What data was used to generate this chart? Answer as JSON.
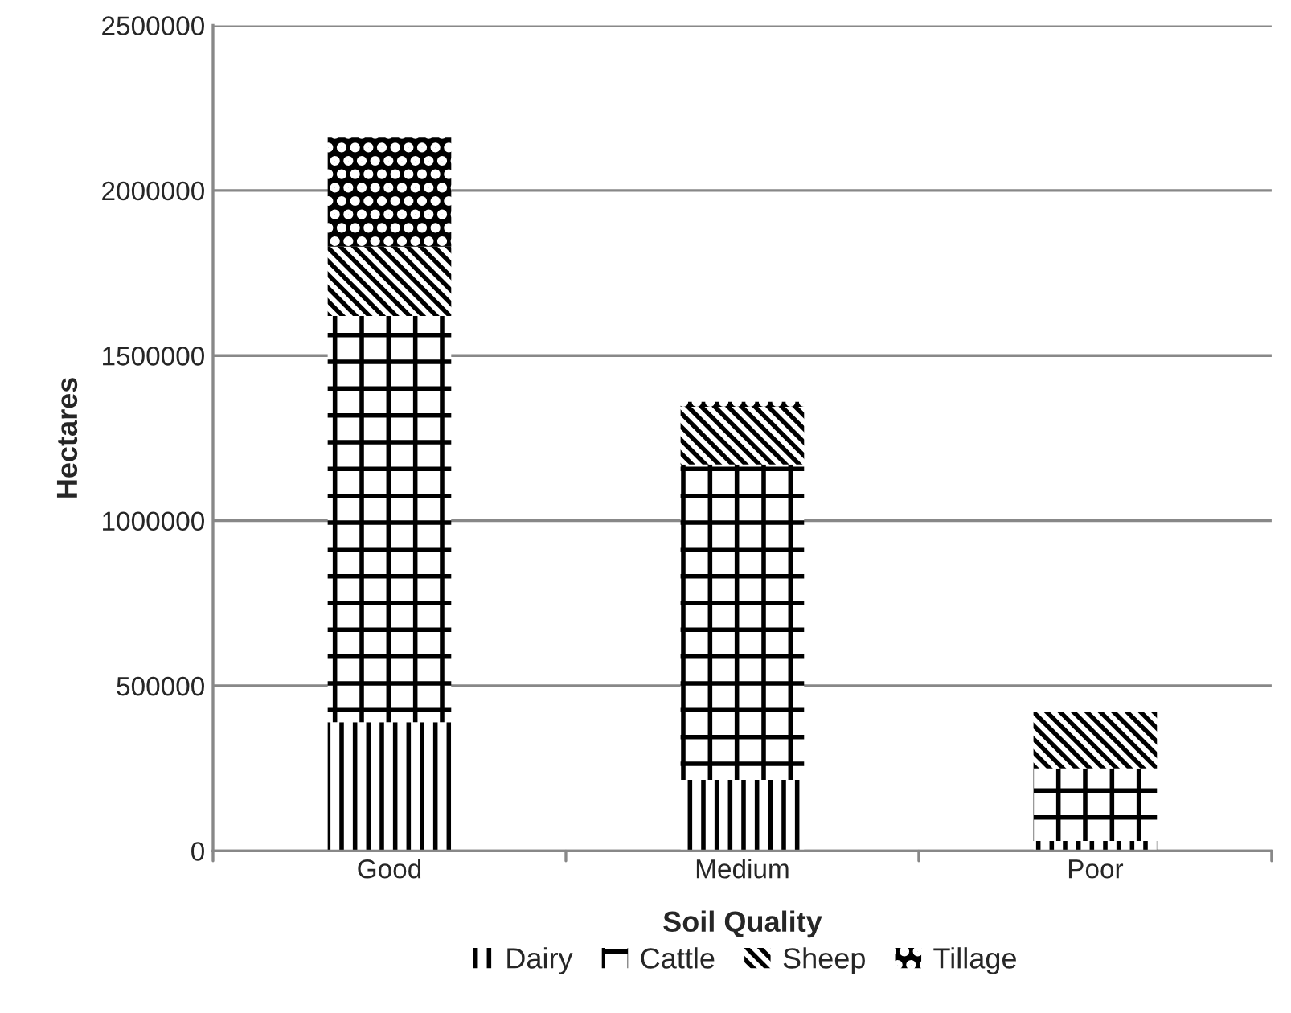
{
  "chart_data": {
    "type": "bar",
    "stacked": true,
    "xlabel": "Soil Quality",
    "ylabel": "Hectares",
    "categories": [
      "Good",
      "Medium",
      "Poor"
    ],
    "series": [
      {
        "name": "Dairy",
        "color": "#000000",
        "values": [
          390000,
          215000,
          30000
        ]
      },
      {
        "name": "Cattle",
        "color": "#000000",
        "values": [
          1230000,
          955000,
          220000
        ]
      },
      {
        "name": "Sheep",
        "color": "#000000",
        "values": [
          210000,
          175000,
          170000
        ]
      },
      {
        "name": "Tillage",
        "color": "#000000",
        "values": [
          330000,
          15000,
          0
        ]
      }
    ],
    "ylim": [
      0,
      2500000
    ],
    "yticks": [
      0,
      500000,
      1000000,
      1500000,
      2000000,
      2500000
    ],
    "grid": "y",
    "legend": "bottom"
  }
}
